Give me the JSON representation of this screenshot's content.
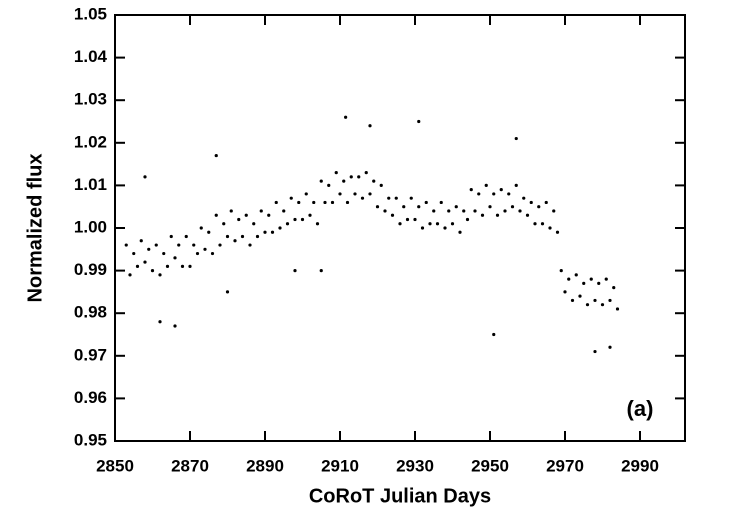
{
  "chart_data": {
    "type": "scatter",
    "x_label": "CoRoT Julian Days",
    "y_label": "Normalized flux",
    "annotation": "(a)",
    "color": "#000000",
    "xlim": [
      2850,
      3002
    ],
    "xticks": [
      2850,
      2870,
      2890,
      2910,
      2930,
      2950,
      2970,
      2990
    ],
    "ylim": [
      0.95,
      1.05
    ],
    "yticks": [
      0.95,
      0.96,
      0.97,
      0.98,
      0.99,
      {
        "value": 1,
        "label": "1.00"
      },
      1.01,
      1.02,
      1.03,
      1.04,
      1.05
    ],
    "x": [
      2853,
      2854,
      2855,
      2856,
      2857,
      2858,
      2859,
      2860,
      2861,
      2862,
      2863,
      2864,
      2865,
      2866,
      2867,
      2868,
      2869,
      2870,
      2871,
      2872,
      2873,
      2874,
      2875,
      2876,
      2877,
      2878,
      2879,
      2880,
      2881,
      2882,
      2883,
      2884,
      2885,
      2886,
      2887,
      2888,
      2889,
      2890,
      2891,
      2892,
      2893,
      2894,
      2895,
      2896,
      2897,
      2898,
      2899,
      2900,
      2901,
      2902,
      2903,
      2904,
      2905,
      2906,
      2907,
      2908,
      2909,
      2910,
      2911,
      2912,
      2913,
      2914,
      2915,
      2916,
      2917,
      2918,
      2919,
      2920,
      2921,
      2922,
      2923,
      2924,
      2925,
      2926,
      2927,
      2928,
      2929,
      2930,
      2931,
      2932,
      2933,
      2934,
      2935,
      2936,
      2937,
      2938,
      2939,
      2940,
      2941,
      2942,
      2943,
      2944,
      2945,
      2946,
      2947,
      2948,
      2949,
      2950,
      2951,
      2952,
      2953,
      2954,
      2955,
      2956,
      2957,
      2958,
      2959,
      2960,
      2961,
      2962,
      2963,
      2964,
      2965,
      2966,
      2967,
      2968,
      2969,
      2970,
      2971,
      2972,
      2973,
      2974,
      2975,
      2976,
      2977,
      2978,
      2979,
      2980,
      2981,
      2982,
      2983,
      2984,
      2911.5,
      2931,
      2951,
      2898,
      2905,
      2862,
      2866,
      2978,
      2982,
      2957,
      2918,
      2858,
      2880,
      2877
    ],
    "values": [
      0.996,
      0.989,
      0.994,
      0.991,
      0.997,
      0.992,
      0.995,
      0.99,
      0.996,
      0.989,
      0.994,
      0.991,
      0.998,
      0.993,
      0.996,
      0.991,
      0.998,
      0.991,
      0.996,
      0.994,
      1.0,
      0.995,
      0.999,
      0.994,
      1.003,
      0.996,
      1.001,
      0.998,
      1.004,
      0.997,
      1.002,
      0.998,
      1.003,
      0.996,
      1.001,
      0.998,
      1.004,
      0.999,
      1.003,
      0.999,
      1.006,
      1.0,
      1.004,
      1.001,
      1.007,
      1.002,
      1.006,
      1.002,
      1.008,
      1.003,
      1.006,
      1.001,
      1.011,
      1.006,
      1.01,
      1.006,
      1.013,
      1.008,
      1.011,
      1.006,
      1.012,
      1.008,
      1.012,
      1.007,
      1.013,
      1.008,
      1.011,
      1.005,
      1.01,
      1.004,
      1.007,
      1.003,
      1.007,
      1.001,
      1.005,
      1.002,
      1.007,
      1.002,
      1.005,
      1.0,
      1.006,
      1.001,
      1.004,
      1.001,
      1.006,
      1.0,
      1.004,
      1.001,
      1.005,
      0.999,
      1.004,
      1.002,
      1.009,
      1.004,
      1.008,
      1.003,
      1.01,
      1.005,
      1.008,
      1.003,
      1.009,
      1.004,
      1.008,
      1.005,
      1.01,
      1.004,
      1.007,
      1.003,
      1.006,
      1.001,
      1.005,
      1.001,
      1.006,
      1.0,
      1.004,
      0.999,
      0.99,
      0.985,
      0.988,
      0.983,
      0.989,
      0.984,
      0.987,
      0.982,
      0.988,
      0.983,
      0.987,
      0.982,
      0.988,
      0.983,
      0.986,
      0.981,
      1.026,
      1.025,
      0.975,
      0.99,
      0.99,
      0.978,
      0.977,
      0.971,
      0.972,
      1.021,
      1.024,
      1.012,
      0.985,
      1.017
    ]
  }
}
